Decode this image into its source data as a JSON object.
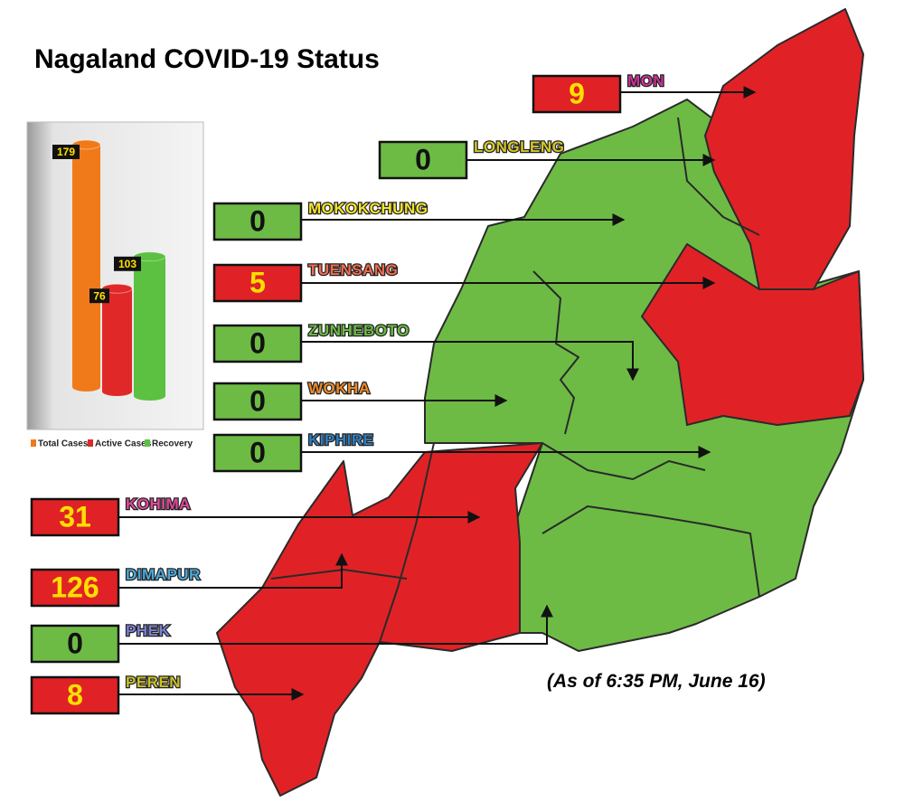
{
  "title": "Nagaland COVID-19 Status",
  "note": "(As of 6:35 PM, June 16)",
  "districts": [
    {
      "name": "MON",
      "count": 9,
      "color": "#cc3399"
    },
    {
      "name": "LONGLENG",
      "count": 0,
      "color": "#d4c828"
    },
    {
      "name": "MOKOKCHUNG",
      "count": 0,
      "color": "#f5e52c"
    },
    {
      "name": "TUENSANG",
      "count": 5,
      "color": "#f26b4f"
    },
    {
      "name": "ZUNHEBOTO",
      "count": 0,
      "color": "#6dbb45"
    },
    {
      "name": "WOKHA",
      "count": 0,
      "color": "#f08a24"
    },
    {
      "name": "KIPHIRE",
      "count": 0,
      "color": "#2e7fc0"
    },
    {
      "name": "KOHIMA",
      "count": 31,
      "color": "#e0489a"
    },
    {
      "name": "DIMAPUR",
      "count": 126,
      "color": "#4aa8d8"
    },
    {
      "name": "PHEK",
      "count": 0,
      "color": "#7b7fd0"
    },
    {
      "name": "PEREN",
      "count": 8,
      "color": "#c9c02a"
    }
  ],
  "chart_data": {
    "type": "bar",
    "categories": [
      "Total Cases",
      "Active Cases",
      "Recovery"
    ],
    "values": [
      179,
      76,
      103
    ],
    "colors": [
      "#f07a1a",
      "#e02828",
      "#5cc040"
    ]
  }
}
